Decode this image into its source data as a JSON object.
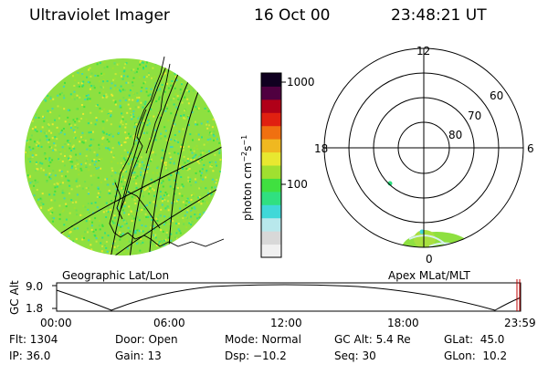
{
  "header": {
    "instrument": "Ultraviolet Imager",
    "date": "16 Oct 00",
    "time": "23:48:21 UT"
  },
  "colorbar": {
    "unit_label": "photon cm",
    "tick_labels": [
      "1000",
      "100"
    ],
    "palette": [
      "#f0f0f0",
      "#d8d8d8",
      "#b8e8ec",
      "#40d8d8",
      "#30e080",
      "#40e040",
      "#a0e030",
      "#e8e830",
      "#f0b820",
      "#f07010",
      "#e02010",
      "#b00018",
      "#500040",
      "#100020"
    ]
  },
  "geo_panel": {
    "label": "Geographic Lat/Lon",
    "fill_color": "#8ee040"
  },
  "polar_panel": {
    "label": "Apex MLat/MLT",
    "mlt_labels": [
      "12",
      "18",
      "6",
      "0"
    ],
    "lat_labels": [
      "60",
      "70",
      "80"
    ]
  },
  "altitude_plot": {
    "ylabel": "GC Alt",
    "yticks": [
      "9.0",
      "1.8"
    ],
    "xticks": [
      "00:00",
      "06:00",
      "12:00",
      "18:00",
      "23:59"
    ],
    "current_time_fraction": 0.992
  },
  "info": {
    "flt": "Flt: 1304",
    "ip": "IP: 36.0",
    "door": "Door: Open",
    "gain": "Gain: 13",
    "mode": "Mode: Normal",
    "dsp": "Dsp: −10.2",
    "gcalt": "GC Alt: 5.4 Re",
    "seq": "Seq: 30",
    "glat": "GLat:  45.0",
    "glon": "GLon:  10.2"
  }
}
